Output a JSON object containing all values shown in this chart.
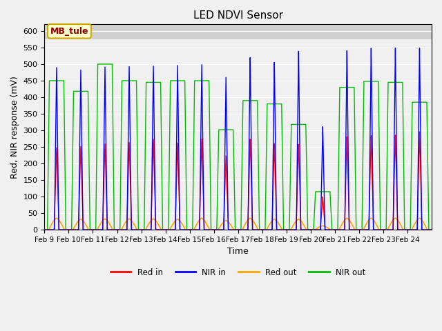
{
  "title": "LED NDVI Sensor",
  "xlabel": "Time",
  "ylabel": "Red, NIR response (mV)",
  "ylim": [
    0,
    620
  ],
  "yticks": [
    0,
    50,
    100,
    150,
    200,
    250,
    300,
    350,
    400,
    450,
    500,
    550,
    600
  ],
  "bg_color": "#f0f0f0",
  "plot_bg_color": "#f0f0f0",
  "annotation_text": "MB_tule",
  "annotation_color": "#8b0000",
  "annotation_bg": "#ffffcc",
  "annotation_border": "#ccaa00",
  "colors": {
    "red_in": "#ff0000",
    "nir_in": "#0000ff",
    "red_out": "#ffa500",
    "nir_out": "#00bb00"
  },
  "xtick_labels": [
    "Feb 9",
    "Feb 10",
    "Feb 11",
    "Feb 12",
    "Feb 13",
    "Feb 14",
    "Feb 15",
    "Feb 16",
    "Feb 17",
    "Feb 18",
    "Feb 19",
    "Feb 20",
    "Feb 21",
    "Feb 22",
    "Feb 23",
    "Feb 24"
  ],
  "nir_in_peaks": [
    490,
    483,
    493,
    495,
    497,
    500,
    503,
    465,
    525,
    510,
    543,
    313,
    543,
    550,
    550,
    549
  ],
  "red_in_peaks": [
    248,
    252,
    260,
    265,
    275,
    264,
    276,
    225,
    276,
    262,
    260,
    100,
    282,
    285,
    286,
    296
  ],
  "nir_out_peaks": [
    450,
    418,
    500,
    450,
    445,
    450,
    450,
    302,
    390,
    380,
    318,
    115,
    430,
    448,
    445,
    385
  ],
  "red_out_peaks": [
    35,
    32,
    33,
    33,
    33,
    32,
    35,
    28,
    35,
    32,
    32,
    12,
    35,
    35,
    35,
    35
  ],
  "n_days": 16,
  "samples_per_day": 500
}
